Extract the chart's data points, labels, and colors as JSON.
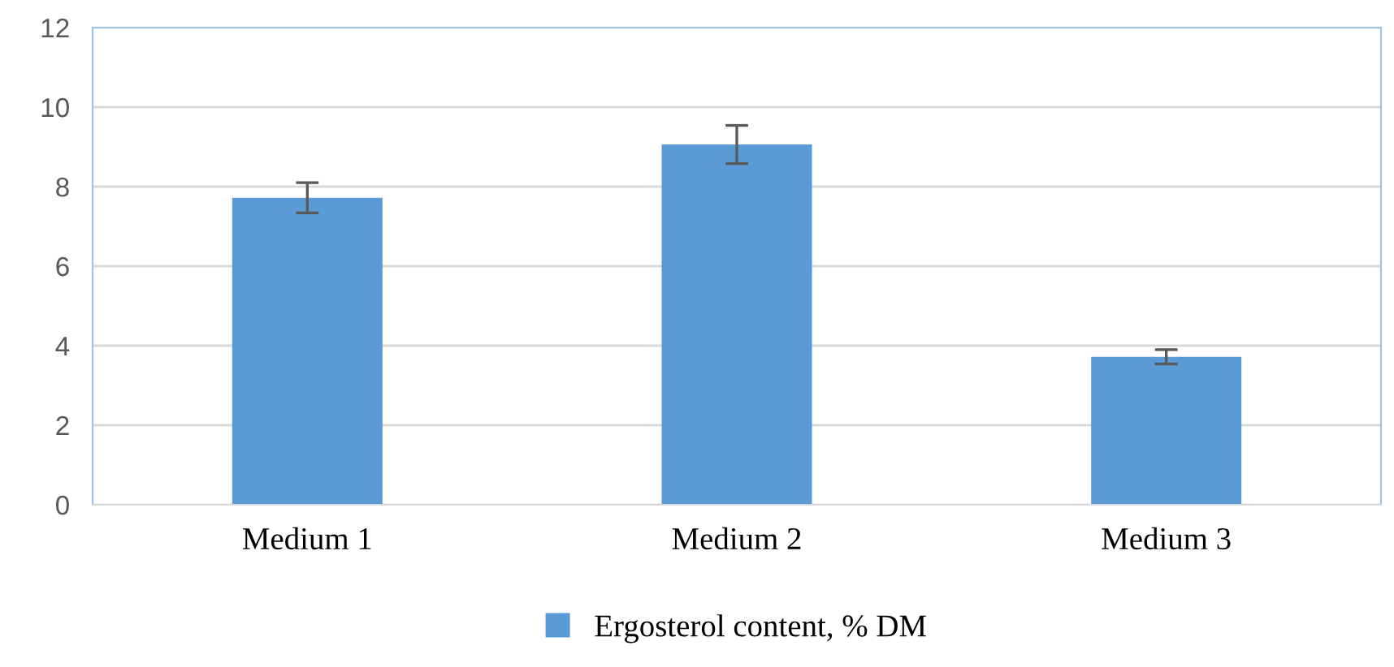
{
  "chart_data": {
    "type": "bar",
    "categories": [
      "Medium 1",
      "Medium 2",
      "Medium 3"
    ],
    "series": [
      {
        "name": "Ergosterol content, % DM",
        "color": "#5b9bd5",
        "values": [
          7.72,
          9.06,
          3.72
        ],
        "errors": [
          0.38,
          0.48,
          0.18
        ]
      }
    ],
    "ylim": [
      0,
      12
    ],
    "yticks": [
      0,
      2,
      4,
      6,
      8,
      10,
      12
    ],
    "grid": "y",
    "legend": "bottom"
  }
}
